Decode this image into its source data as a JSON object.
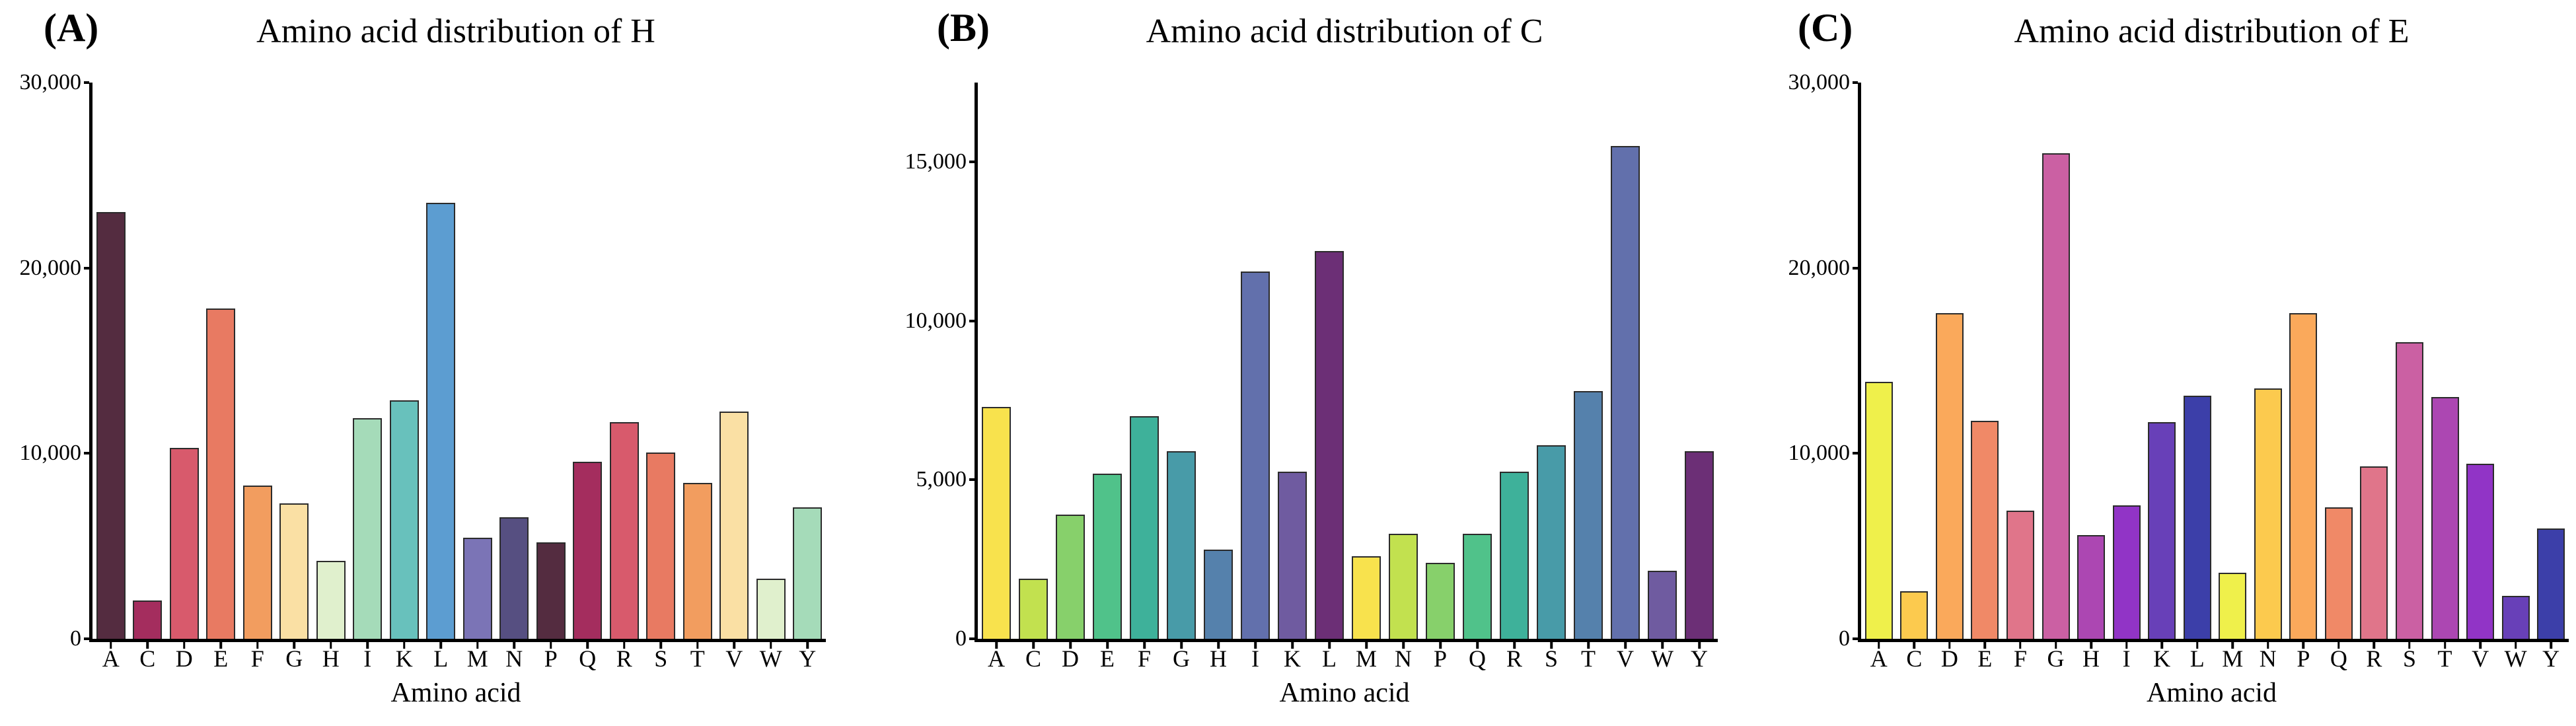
{
  "figure": {
    "background": "#ffffff",
    "axis_color": "#000000",
    "bar_outline_color": "#2b2b2b",
    "categories": [
      "A",
      "C",
      "D",
      "E",
      "F",
      "G",
      "H",
      "I",
      "K",
      "L",
      "M",
      "N",
      "P",
      "Q",
      "R",
      "S",
      "T",
      "V",
      "W",
      "Y"
    ]
  },
  "chart_data": [
    {
      "type": "bar",
      "panel_label": "(A)",
      "title": "Amino acid distribution of H",
      "xlabel": "Amino acid",
      "ylabel": "",
      "categories": [
        "A",
        "C",
        "D",
        "E",
        "F",
        "G",
        "H",
        "I",
        "K",
        "L",
        "M",
        "N",
        "P",
        "Q",
        "R",
        "S",
        "T",
        "V",
        "W",
        "Y"
      ],
      "values": [
        23000,
        2050,
        10300,
        17800,
        8250,
        7300,
        4200,
        11900,
        12850,
        23500,
        5450,
        6550,
        5200,
        9550,
        11700,
        10050,
        8400,
        12250,
        3250,
        7100
      ],
      "ylim": [
        0,
        30000
      ],
      "axis_top": 30000,
      "yticks": [
        0,
        10000,
        20000,
        30000
      ],
      "ytick_labels": [
        "0",
        "10,000",
        "20,000",
        "30,000"
      ],
      "grid": false,
      "legend": null,
      "palette": [
        "#542C40",
        "#A42D5E",
        "#D85A6C",
        "#E87A62",
        "#F29D5F",
        "#FAE0A4",
        "#E0F0CD",
        "#A5DBB9",
        "#68C1BC",
        "#5C9DD1",
        "#7B74B6",
        "#564F81"
      ]
    },
    {
      "type": "bar",
      "panel_label": "(B)",
      "title": "Amino acid distribution of C",
      "xlabel": "Amino acid",
      "ylabel": "",
      "categories": [
        "A",
        "C",
        "D",
        "E",
        "F",
        "G",
        "H",
        "I",
        "K",
        "L",
        "M",
        "N",
        "P",
        "Q",
        "R",
        "S",
        "T",
        "V",
        "W",
        "Y"
      ],
      "values": [
        7300,
        1900,
        3900,
        5200,
        7000,
        5900,
        2800,
        11550,
        5250,
        12200,
        2600,
        3300,
        2400,
        3300,
        5250,
        6100,
        7800,
        15500,
        2150,
        5900
      ],
      "ylim": [
        0,
        17500
      ],
      "axis_top": 17500,
      "yticks": [
        0,
        5000,
        10000,
        15000
      ],
      "ytick_labels": [
        "0",
        "5,000",
        "10,000",
        "15,000"
      ],
      "grid": false,
      "legend": null,
      "palette": [
        "#F8E24D",
        "#C2E14F",
        "#87D06B",
        "#50C28A",
        "#3EB19A",
        "#489BA8",
        "#5581AC",
        "#6270AC",
        "#6F5BA0",
        "#6C2F76"
      ]
    },
    {
      "type": "bar",
      "panel_label": "(C)",
      "title": "Amino acid distribution of E",
      "xlabel": "Amino acid",
      "ylabel": "",
      "categories": [
        "A",
        "C",
        "D",
        "E",
        "F",
        "G",
        "H",
        "I",
        "K",
        "L",
        "M",
        "N",
        "P",
        "Q",
        "R",
        "S",
        "T",
        "V",
        "W",
        "Y"
      ],
      "values": [
        13850,
        2550,
        17550,
        11750,
        6900,
        26200,
        5600,
        7200,
        11700,
        13100,
        3550,
        13500,
        17550,
        7100,
        9300,
        16000,
        13050,
        9450,
        2300,
        5950
      ],
      "ylim": [
        0,
        30000
      ],
      "axis_top": 30000,
      "yticks": [
        0,
        10000,
        20000,
        30000
      ],
      "ytick_labels": [
        "0",
        "10,000",
        "20,000",
        "30,000"
      ],
      "grid": false,
      "legend": null,
      "palette": [
        "#EFF04B",
        "#FCCA4E",
        "#FAA95B",
        "#F08967",
        "#E0758A",
        "#CB60A3",
        "#AC47B2",
        "#9134C6",
        "#6840B8",
        "#3C3FA9"
      ]
    }
  ]
}
